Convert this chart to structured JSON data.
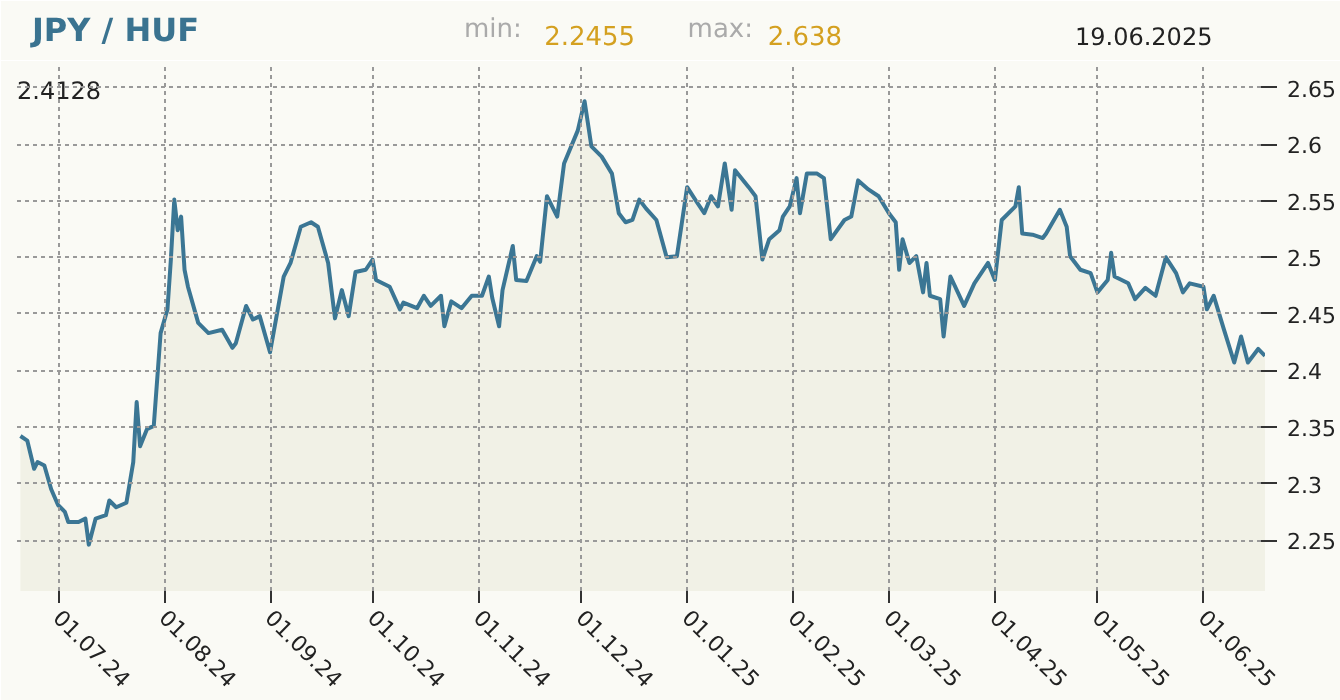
{
  "chart_data": {
    "type": "area",
    "title": "JPY / HUF",
    "annotations": [
      "min:",
      "2.2455",
      "max:",
      "2.638",
      "19.06.2025",
      "2.4128"
    ],
    "x": [
      "2024-06-20",
      "2024-06-22",
      "2024-06-24",
      "2024-06-25",
      "2024-06-27",
      "2024-06-29",
      "2024-07-01",
      "2024-07-03",
      "2024-07-04",
      "2024-07-07",
      "2024-07-09",
      "2024-07-10",
      "2024-07-12",
      "2024-07-15",
      "2024-07-16",
      "2024-07-18",
      "2024-07-21",
      "2024-07-23",
      "2024-07-24",
      "2024-07-25",
      "2024-07-27",
      "2024-07-29",
      "2024-07-31",
      "2024-08-02",
      "2024-08-03",
      "2024-08-04",
      "2024-08-05",
      "2024-08-06",
      "2024-08-07",
      "2024-08-08",
      "2024-08-11",
      "2024-08-14",
      "2024-08-18",
      "2024-08-21",
      "2024-08-22",
      "2024-08-25",
      "2024-08-27",
      "2024-08-29",
      "2024-09-01",
      "2024-09-05",
      "2024-09-07",
      "2024-09-10",
      "2024-09-13",
      "2024-09-15",
      "2024-09-18",
      "2024-09-20",
      "2024-09-22",
      "2024-09-24",
      "2024-09-26",
      "2024-09-29",
      "2024-10-01",
      "2024-10-02",
      "2024-10-06",
      "2024-10-09",
      "2024-10-10",
      "2024-10-14",
      "2024-10-16",
      "2024-10-18",
      "2024-10-21",
      "2024-10-22",
      "2024-10-24",
      "2024-10-27",
      "2024-10-30",
      "2024-11-02",
      "2024-11-04",
      "2024-11-05",
      "2024-11-07",
      "2024-11-08",
      "2024-11-11",
      "2024-11-12",
      "2024-11-15",
      "2024-11-18",
      "2024-11-19",
      "2024-11-21",
      "2024-11-24",
      "2024-11-26",
      "2024-11-30",
      "2024-12-02",
      "2024-12-04",
      "2024-12-07",
      "2024-12-10",
      "2024-12-12",
      "2024-12-14",
      "2024-12-16",
      "2024-12-18",
      "2024-12-20",
      "2024-12-23",
      "2024-12-26",
      "2024-12-29",
      "2025-01-01",
      "2025-01-04",
      "2025-01-06",
      "2025-01-08",
      "2025-01-10",
      "2025-01-12",
      "2025-01-14",
      "2025-01-15",
      "2025-01-19",
      "2025-01-21",
      "2025-01-23",
      "2025-01-25",
      "2025-01-28",
      "2025-01-29",
      "2025-01-31",
      "2025-02-02",
      "2025-02-03",
      "2025-02-05",
      "2025-02-08",
      "2025-02-10",
      "2025-02-12",
      "2025-02-16",
      "2025-02-18",
      "2025-02-20",
      "2025-02-23",
      "2025-02-26",
      "2025-03-01",
      "2025-03-03",
      "2025-03-04",
      "2025-03-05",
      "2025-03-07",
      "2025-03-09",
      "2025-03-11",
      "2025-03-12",
      "2025-03-13",
      "2025-03-16",
      "2025-03-17",
      "2025-03-19",
      "2025-03-23",
      "2025-03-26",
      "2025-03-30",
      "2025-04-01",
      "2025-04-03",
      "2025-04-07",
      "2025-04-08",
      "2025-04-09",
      "2025-04-12",
      "2025-04-15",
      "2025-04-16",
      "2025-04-20",
      "2025-04-22",
      "2025-04-23",
      "2025-04-26",
      "2025-04-29",
      "2025-05-01",
      "2025-05-04",
      "2025-05-05",
      "2025-05-06",
      "2025-05-10",
      "2025-05-12",
      "2025-05-15",
      "2025-05-18",
      "2025-05-21",
      "2025-05-24",
      "2025-05-26",
      "2025-05-28",
      "2025-06-01",
      "2025-06-02",
      "2025-06-04",
      "2025-06-07",
      "2025-06-10",
      "2025-06-12",
      "2025-06-14",
      "2025-06-17",
      "2025-06-18",
      "2025-06-19"
    ],
    "series": [
      {
        "color": "#3b7694",
        "values": [
          2.342,
          2.338,
          2.313,
          2.319,
          2.316,
          2.295,
          2.281,
          2.275,
          2.266,
          2.266,
          2.269,
          2.246,
          2.269,
          2.272,
          2.285,
          2.279,
          2.283,
          2.319,
          2.372,
          2.333,
          2.348,
          2.351,
          2.433,
          2.454,
          2.498,
          2.551,
          2.524,
          2.536,
          2.489,
          2.474,
          2.442,
          2.433,
          2.436,
          2.42,
          2.424,
          2.457,
          2.445,
          2.448,
          2.416,
          2.483,
          2.495,
          2.527,
          2.531,
          2.527,
          2.495,
          2.446,
          2.471,
          2.448,
          2.487,
          2.489,
          2.498,
          2.48,
          2.474,
          2.454,
          2.46,
          2.455,
          2.466,
          2.457,
          2.466,
          2.439,
          2.461,
          2.455,
          2.466,
          2.466,
          2.483,
          2.464,
          2.439,
          2.471,
          2.51,
          2.48,
          2.479,
          2.501,
          2.496,
          2.554,
          2.536,
          2.583,
          2.612,
          2.638,
          2.598,
          2.589,
          2.574,
          2.539,
          2.531,
          2.533,
          2.551,
          2.543,
          2.533,
          2.5,
          2.501,
          2.562,
          2.548,
          2.539,
          2.554,
          2.545,
          2.583,
          2.542,
          2.577,
          2.562,
          2.554,
          2.498,
          2.516,
          2.524,
          2.536,
          2.545,
          2.57,
          2.539,
          2.574,
          2.574,
          2.57,
          2.516,
          2.533,
          2.536,
          2.568,
          2.56,
          2.554,
          2.539,
          2.531,
          2.489,
          2.516,
          2.495,
          2.501,
          2.469,
          2.495,
          2.466,
          2.463,
          2.43,
          2.483,
          2.457,
          2.477,
          2.495,
          2.48,
          2.533,
          2.545,
          2.562,
          2.521,
          2.52,
          2.517,
          2.521,
          2.542,
          2.527,
          2.501,
          2.489,
          2.486,
          2.469,
          2.48,
          2.504,
          2.483,
          2.477,
          2.463,
          2.473,
          2.466,
          2.5,
          2.486,
          2.469,
          2.477,
          2.474,
          2.454,
          2.466,
          2.436,
          2.407,
          2.43,
          2.407,
          2.419,
          2.416,
          2.413
        ]
      }
    ],
    "xlim": [
      "2024-06-19",
      "2025-06-19"
    ],
    "xticks": [
      {
        "value": "2024-07-01",
        "label": "01.07.24"
      },
      {
        "value": "2024-08-01",
        "label": "01.08.24"
      },
      {
        "value": "2024-09-01",
        "label": "01.09.24"
      },
      {
        "value": "2024-10-01",
        "label": "01.10.24"
      },
      {
        "value": "2024-11-01",
        "label": "01.11.24"
      },
      {
        "value": "2024-12-01",
        "label": "01.12.24"
      },
      {
        "value": "2025-01-01",
        "label": "01.01.25"
      },
      {
        "value": "2025-02-01",
        "label": "01.02.25"
      },
      {
        "value": "2025-03-01",
        "label": "01.03.25"
      },
      {
        "value": "2025-04-01",
        "label": "01.04.25"
      },
      {
        "value": "2025-05-01",
        "label": "01.05.25"
      },
      {
        "value": "2025-06-01",
        "label": "01.06.25"
      }
    ],
    "ylim": [
      2.205,
      2.67
    ],
    "yticks": [
      2.25,
      2.3,
      2.35,
      2.4,
      2.45,
      2.5,
      2.55,
      2.6,
      2.65
    ],
    "grid": true,
    "marker": "none",
    "line_style": "solid"
  }
}
